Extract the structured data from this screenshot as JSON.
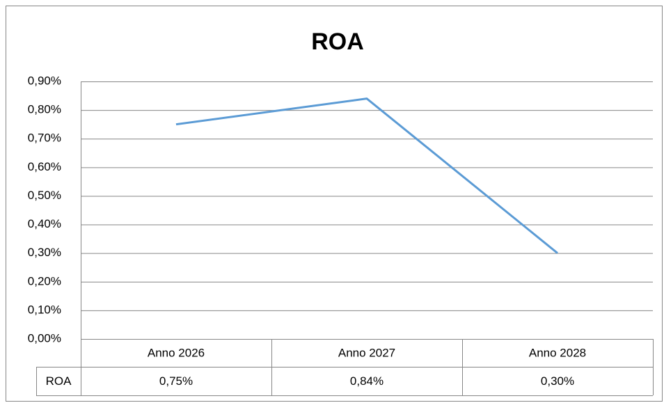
{
  "chart_data": {
    "type": "line",
    "title": "ROA",
    "categories": [
      "Anno 2026",
      "Anno 2027",
      "Anno 2028"
    ],
    "series": [
      {
        "name": "ROA",
        "color": "#5b9bd5",
        "values": [
          0.75,
          0.84,
          0.3
        ],
        "value_labels": [
          "0,75%",
          "0,84%",
          "0,30%"
        ]
      }
    ],
    "ylim": [
      0,
      0.9
    ],
    "yticks": [
      {
        "value": 0,
        "label": "0,00%"
      },
      {
        "value": 0.1,
        "label": "0,10%"
      },
      {
        "value": 0.2,
        "label": "0,20%"
      },
      {
        "value": 0.3,
        "label": "0,30%"
      },
      {
        "value": 0.4,
        "label": "0,40%"
      },
      {
        "value": 0.5,
        "label": "0,50%"
      },
      {
        "value": 0.6,
        "label": "0,60%"
      },
      {
        "value": 0.7,
        "label": "0,70%"
      },
      {
        "value": 0.8,
        "label": "0,80%"
      },
      {
        "value": 0.9,
        "label": "0,90%"
      }
    ],
    "grid": true
  }
}
